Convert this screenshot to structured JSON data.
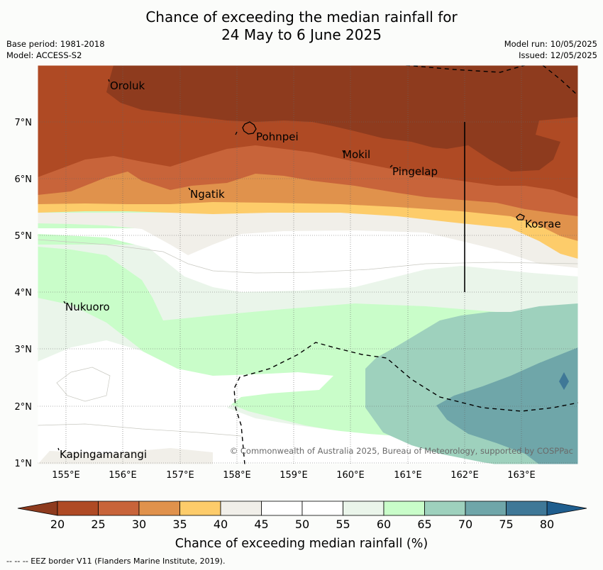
{
  "header": {
    "title_line1": "Chance of exceeding the median rainfall for",
    "title_line2": "24 May to 6 June 2025",
    "base_period": "Base period: 1981-2018",
    "model": "Model: ACCESS-S2",
    "model_run": "Model run: 10/05/2025",
    "issued": "Issued: 12/05/2025"
  },
  "map": {
    "lon_labels": [
      "155°E",
      "156°E",
      "157°E",
      "158°E",
      "159°E",
      "160°E",
      "161°E",
      "162°E",
      "163°E"
    ],
    "lat_labels": [
      "7°N",
      "6°N",
      "5°N",
      "4°N",
      "3°N",
      "2°N",
      "1°N"
    ],
    "places": [
      {
        "name": "Oroluk"
      },
      {
        "name": "Pohnpei"
      },
      {
        "name": "Mokil"
      },
      {
        "name": "Pingelap"
      },
      {
        "name": "Ngatik"
      },
      {
        "name": "Kosrae"
      },
      {
        "name": "Nukuoro"
      },
      {
        "name": "Kapingamarangi"
      }
    ],
    "copyright": "© Commonwealth of Australia 2025, Bureau of Meteorology, supported by COSPPac"
  },
  "colorbar": {
    "ticks": [
      "20",
      "25",
      "30",
      "35",
      "40",
      "45",
      "50",
      "55",
      "60",
      "65",
      "70",
      "75",
      "80"
    ],
    "colors": [
      "#af4a24",
      "#c8643a",
      "#e0924c",
      "#fdcc6a",
      "#f1efe9",
      "#ffffff",
      "#ffffff",
      "#eaf5ea",
      "#c9fdc9",
      "#9ed1bd",
      "#6fa6a9",
      "#3f7897"
    ],
    "under_color": "#8e3b1e",
    "over_color": "#1f5e8e",
    "label": "Chance of exceeding median rainfall (%)"
  },
  "footnote": "--  --  -- EEZ border V11 (Flanders Marine Institute, 2019)."
}
